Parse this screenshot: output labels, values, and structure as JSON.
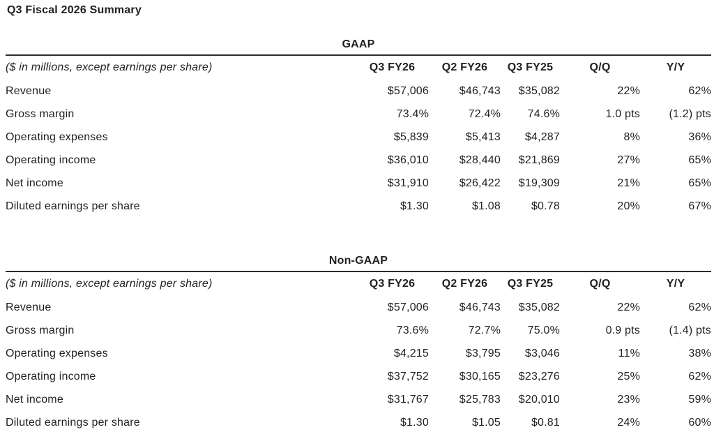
{
  "page_title": "Q3 Fiscal 2026 Summary",
  "colors": {
    "text": "#1f2023",
    "rule": "#2b2b2b",
    "background": "#ffffff"
  },
  "tables": [
    {
      "title": "GAAP",
      "caption": "($ in millions, except earnings per share)",
      "columns": [
        "Q3 FY26",
        "Q2 FY26",
        "Q3 FY25",
        "Q/Q",
        "Y/Y"
      ],
      "rows": [
        {
          "label": "Revenue",
          "values": [
            "$57,006",
            "$46,743",
            "$35,082",
            "22%",
            "62%"
          ]
        },
        {
          "label": "Gross margin",
          "values": [
            "73.4%",
            "72.4%",
            "74.6%",
            "1.0 pts",
            "(1.2) pts"
          ]
        },
        {
          "label": "Operating expenses",
          "values": [
            "$5,839",
            "$5,413",
            "$4,287",
            "8%",
            "36%"
          ]
        },
        {
          "label": "Operating income",
          "values": [
            "$36,010",
            "$28,440",
            "$21,869",
            "27%",
            "65%"
          ]
        },
        {
          "label": "Net income",
          "values": [
            "$31,910",
            "$26,422",
            "$19,309",
            "21%",
            "65%"
          ]
        },
        {
          "label": "Diluted earnings per share",
          "values": [
            "$1.30",
            "$1.08",
            "$0.78",
            "20%",
            "67%"
          ]
        }
      ]
    },
    {
      "title": "Non-GAAP",
      "caption": "($ in millions, except earnings per share)",
      "columns": [
        "Q3 FY26",
        "Q2 FY26",
        "Q3 FY25",
        "Q/Q",
        "Y/Y"
      ],
      "rows": [
        {
          "label": "Revenue",
          "values": [
            "$57,006",
            "$46,743",
            "$35,082",
            "22%",
            "62%"
          ]
        },
        {
          "label": "Gross margin",
          "values": [
            "73.6%",
            "72.7%",
            "75.0%",
            "0.9 pts",
            "(1.4) pts"
          ]
        },
        {
          "label": "Operating expenses",
          "values": [
            "$4,215",
            "$3,795",
            "$3,046",
            "11%",
            "38%"
          ]
        },
        {
          "label": "Operating income",
          "values": [
            "$37,752",
            "$30,165",
            "$23,276",
            "25%",
            "62%"
          ]
        },
        {
          "label": "Net income",
          "values": [
            "$31,767",
            "$25,783",
            "$20,010",
            "23%",
            "59%"
          ]
        },
        {
          "label": "Diluted earnings per share",
          "values": [
            "$1.30",
            "$1.05",
            "$0.81",
            "24%",
            "60%"
          ]
        }
      ]
    }
  ]
}
